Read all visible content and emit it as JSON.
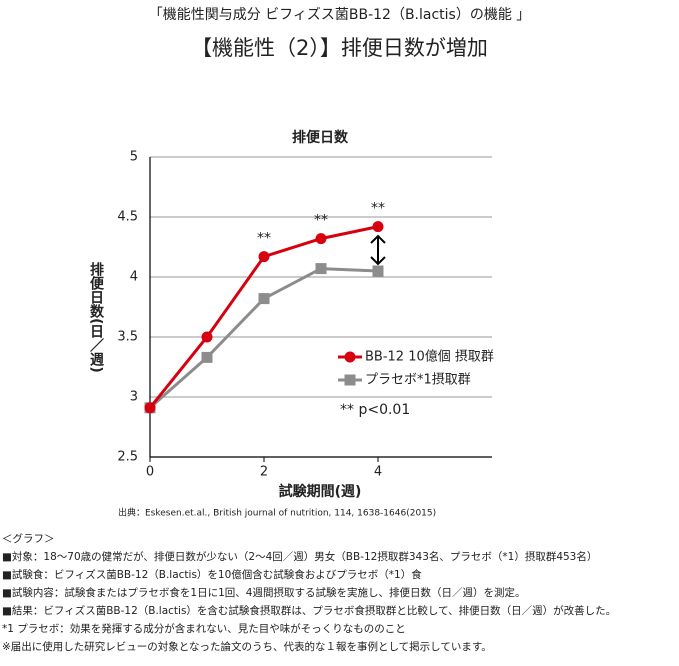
{
  "header": {
    "subtitle": "「機能性関与成分 ビフィズス菌BB-12（B.lactis）の機能 」",
    "title": "【機能性（2）】排便日数が増加"
  },
  "chart_data": {
    "type": "line",
    "title": "排便日数",
    "x_label": "試験期間(週)",
    "y_label": "排便日数(日／週)",
    "x": [
      0,
      1,
      2,
      3,
      4
    ],
    "series": [
      {
        "name": "BB-12 10億個 摂取群",
        "color": "#d7000f",
        "marker": "circle",
        "values": [
          2.91,
          3.5,
          4.17,
          4.32,
          4.42
        ]
      },
      {
        "name": "プラセボ*1摂取群",
        "color": "#8c8c8c",
        "marker": "square",
        "values": [
          2.91,
          3.33,
          3.82,
          4.07,
          4.05
        ]
      }
    ],
    "xlim": [
      0,
      6
    ],
    "xticks": [
      0,
      2,
      4
    ],
    "ylim": [
      2.5,
      5
    ],
    "yticks": [
      2.5,
      3,
      3.5,
      4,
      4.5,
      5
    ],
    "grid": true,
    "significance_marks": [
      "**",
      "**",
      "**"
    ],
    "p_note": "** p<0.01",
    "source": "出典：Eskesen.et.al., British journal of nutrition, 114, 1638-1646(2015)"
  },
  "notes": [
    "＜グラフ＞",
    "■対象：18〜70歳の健常だが、排便日数が少ない（2〜4回／週）男女（BB-12摂取群343名、プラセボ（*1）摂取群453名）",
    "■試験食：ビフィズス菌BB-12（B.lactis）を10億個含む試験食およびプラセボ（*1）食",
    "■試験内容：試験食またはプラセボ食を1日に1回、4週間摂取する試験を実施し、排便日数（日／週）を測定。",
    "■結果：ビフィズス菌BB-12（B.lactis）を含む試験食摂取群は、プラセボ食摂取群と比較して、排便日数（日／週）が改善した。",
    "*1 プラセボ：効果を発揮する成分が含まれない、見た目や味がそっくりなもののこと",
    "※届出に使用した研究レビューの対象となった論文のうち、代表的な１報を事例として掲示しています。"
  ]
}
